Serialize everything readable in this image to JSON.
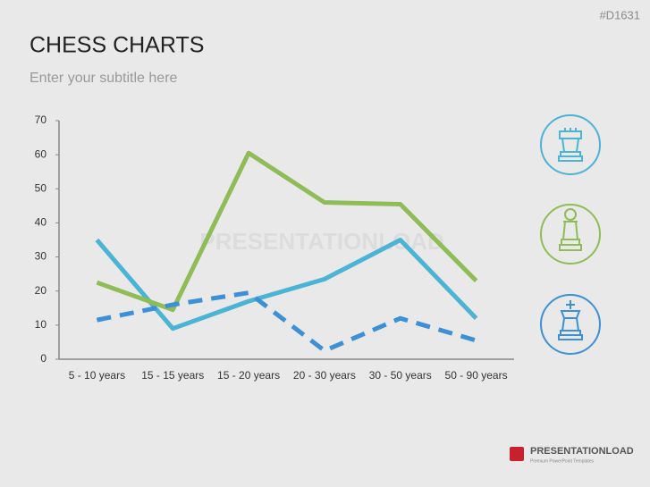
{
  "slide": {
    "code": "#D1631",
    "watermark": "PRESENTATIONLOAD",
    "logo": "PRESENTATIONLOAD",
    "logo_tagline": "Premium PowerPoint Templates"
  },
  "chart_data": {
    "type": "line",
    "title": "CHESS CHARTS",
    "subtitle": "Enter your subtitle here",
    "categories": [
      "5 - 10 years",
      "15 - 15 years",
      "15 - 20 years",
      "20 - 30 years",
      "30 - 50 years",
      "50 - 90 years"
    ],
    "series": [
      {
        "color": "#4bb3d4",
        "line_style": "solid",
        "values": [
          35,
          9,
          17,
          23.5,
          35,
          12
        ]
      },
      {
        "color": "#8fbc57",
        "line_style": "solid",
        "values": [
          22.5,
          14.5,
          60.5,
          46,
          45.5,
          23
        ]
      },
      {
        "color": "#3d8fd6",
        "line_style": "dashed",
        "values": [
          11.5,
          16,
          19.5,
          2.5,
          12,
          5.5
        ]
      }
    ],
    "ylim": [
      0,
      70
    ],
    "yticks": [
      0,
      10,
      20,
      30,
      40,
      50,
      60,
      70
    ],
    "grid": false
  }
}
